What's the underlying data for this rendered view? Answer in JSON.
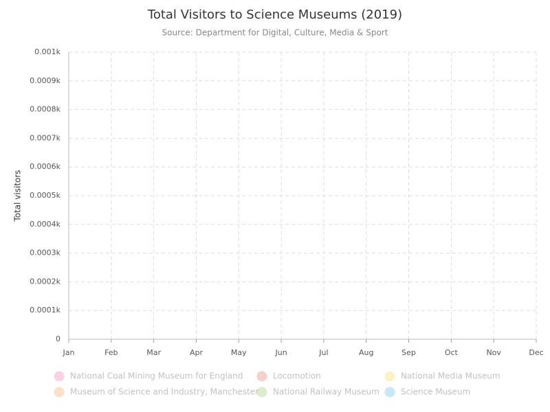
{
  "chart_data": {
    "type": "line",
    "title": "Total Visitors to Science Museums (2019)",
    "subtitle": "Source: Department for Digital, Culture, Media & Sport",
    "y_label": "Total visitors",
    "categories": [
      "Jan",
      "Feb",
      "Mar",
      "Apr",
      "May",
      "Jun",
      "Jul",
      "Aug",
      "Sep",
      "Oct",
      "Nov",
      "Dec"
    ],
    "series": [
      {
        "name": "National Coal Mining Museum for England",
        "color": "#f06eaa",
        "visible": false
      },
      {
        "name": "Locomotion",
        "color": "#e8694f",
        "visible": false
      },
      {
        "name": "National Media Museum",
        "color": "#f5d94a",
        "visible": false
      },
      {
        "name": "Museum of Science and Industry, Manchester",
        "color": "#f79a4d",
        "visible": false
      },
      {
        "name": "National Railway Museum",
        "color": "#92c35a",
        "visible": false
      },
      {
        "name": "Science Museum",
        "color": "#4db3e6",
        "visible": false
      }
    ],
    "ylim": [
      0,
      1
    ],
    "yticks": [
      0,
      {
        "value": 0.1,
        "label": "0.0001k"
      },
      {
        "value": 0.2,
        "label": "0.0002k"
      },
      {
        "value": 0.3,
        "label": "0.0003k"
      },
      {
        "value": 0.4,
        "label": "0.0004k"
      },
      {
        "value": 0.5,
        "label": "0.0005k"
      },
      {
        "value": 0.6,
        "label": "0.0006k"
      },
      {
        "value": 0.7,
        "label": "0.0007k"
      },
      {
        "value": 0.8,
        "label": "0.0008k"
      },
      {
        "value": 0.9,
        "label": "0.0009k"
      },
      {
        "value": 1,
        "label": "0.001k"
      }
    ],
    "grid": true,
    "legend": "bottom"
  }
}
